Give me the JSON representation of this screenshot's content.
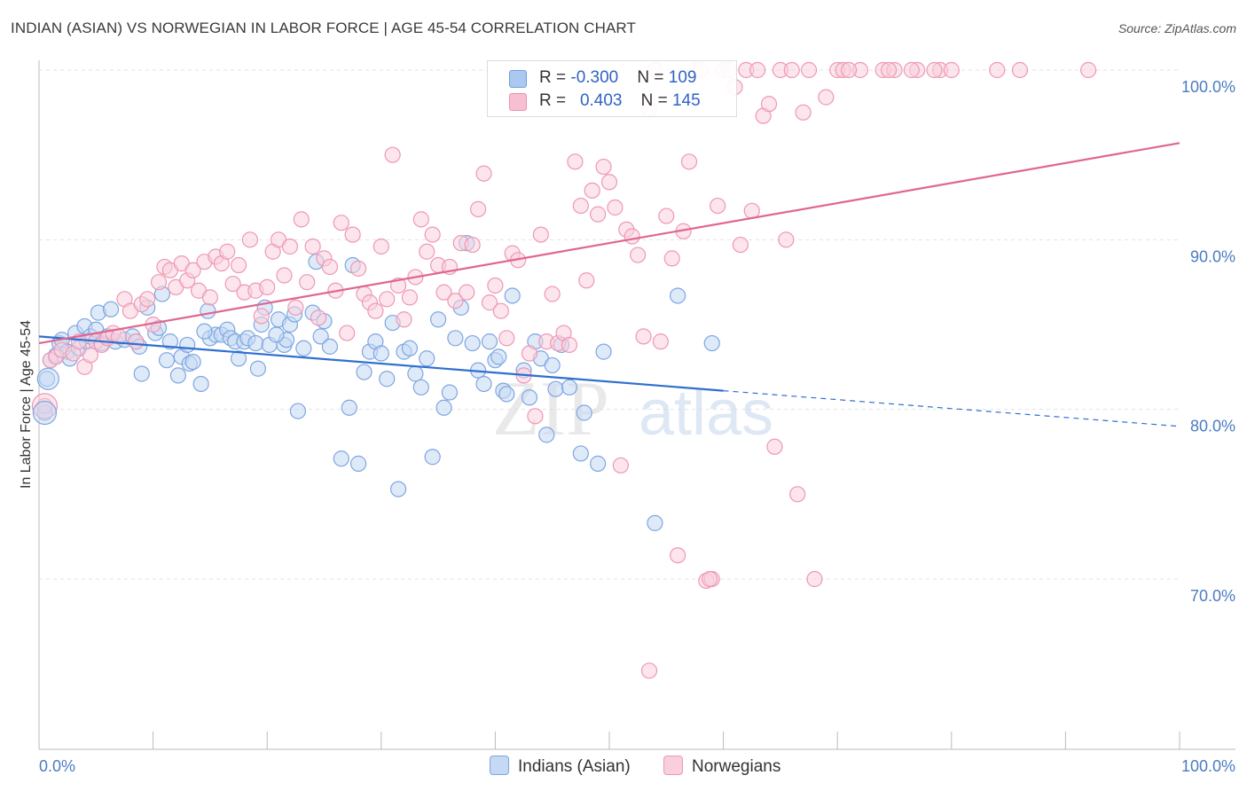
{
  "title": "INDIAN (ASIAN) VS NORWEGIAN IN LABOR FORCE | AGE 45-54 CORRELATION CHART",
  "source": "Source: ZipAtlas.com",
  "watermark": {
    "zip": "ZIP",
    "atlas": "atlas"
  },
  "legend": {
    "rows": [
      {
        "r_label": "R = ",
        "r_value": "-0.300",
        "n_label": "N = ",
        "n_value": "109",
        "color": "#aac8f0",
        "border": "#6f9fe0"
      },
      {
        "r_label": "R = ",
        "r_value": "0.403",
        "n_label": "N = ",
        "n_value": "145",
        "color": "#f7c0d2",
        "border": "#ec8fae"
      }
    ]
  },
  "bottom_legend": [
    {
      "label": "Indians (Asian)",
      "color": "#c5d8f4",
      "border": "#7ea6e0"
    },
    {
      "label": "Norwegians",
      "color": "#f9cfdc",
      "border": "#ee98b4"
    }
  ],
  "chart_data": {
    "type": "scatter",
    "title": "INDIAN (ASIAN) VS NORWEGIAN IN LABOR FORCE | AGE 45-54 CORRELATION CHART",
    "xlabel": "",
    "ylabel": "In Labor Force | Age 45-54",
    "xlim": [
      0,
      100
    ],
    "ylim": [
      60,
      100.5
    ],
    "x_tick_labels": [
      "0.0%",
      "100.0%"
    ],
    "y_ticks": [
      70,
      80,
      90,
      100
    ],
    "y_tick_labels": [
      "70.0%",
      "80.0%",
      "90.0%",
      "100.0%"
    ],
    "grid": true,
    "series": [
      {
        "name": "Indians (Asian)",
        "color": "#7ea6e0",
        "fill": "#c5d8f4",
        "trend": {
          "x": [
            0,
            60
          ],
          "y": [
            84.3,
            81.1
          ],
          "dashed_to": [
            100,
            79.0
          ],
          "color": "#2f6fd1"
        },
        "points": [
          [
            0.5,
            79.8
          ],
          [
            0.7,
            81.8
          ],
          [
            1.0,
            82.9
          ],
          [
            1.5,
            83.2
          ],
          [
            1.8,
            83.9
          ],
          [
            2.0,
            84.1
          ],
          [
            2.5,
            83.4
          ],
          [
            2.7,
            83.0
          ],
          [
            3.2,
            84.5
          ],
          [
            3.5,
            83.6
          ],
          [
            4.0,
            84.9
          ],
          [
            4.2,
            84.0
          ],
          [
            4.5,
            84.3
          ],
          [
            5.0,
            84.7
          ],
          [
            5.2,
            85.7
          ],
          [
            5.5,
            83.9
          ],
          [
            6.0,
            84.3
          ],
          [
            6.3,
            85.9
          ],
          [
            6.7,
            84.0
          ],
          [
            7.5,
            84.1
          ],
          [
            8.2,
            84.3
          ],
          [
            8.5,
            84.0
          ],
          [
            8.8,
            83.7
          ],
          [
            9.0,
            82.1
          ],
          [
            9.5,
            86.0
          ],
          [
            10.2,
            84.5
          ],
          [
            10.5,
            84.8
          ],
          [
            10.8,
            86.8
          ],
          [
            11.2,
            82.9
          ],
          [
            11.5,
            84.0
          ],
          [
            12.2,
            82.0
          ],
          [
            12.5,
            83.1
          ],
          [
            13.0,
            83.8
          ],
          [
            13.2,
            82.7
          ],
          [
            13.5,
            82.8
          ],
          [
            14.2,
            81.5
          ],
          [
            14.8,
            85.8
          ],
          [
            15.0,
            84.2
          ],
          [
            15.5,
            84.4
          ],
          [
            16.0,
            84.4
          ],
          [
            16.5,
            84.7
          ],
          [
            16.8,
            84.2
          ],
          [
            17.2,
            84.0
          ],
          [
            17.5,
            83.0
          ],
          [
            18.0,
            84.0
          ],
          [
            18.3,
            84.2
          ],
          [
            19.0,
            83.9
          ],
          [
            19.2,
            82.4
          ],
          [
            19.5,
            85.0
          ],
          [
            19.8,
            86.0
          ],
          [
            20.2,
            83.8
          ],
          [
            21.0,
            85.3
          ],
          [
            21.5,
            83.8
          ],
          [
            21.7,
            84.1
          ],
          [
            22.0,
            85.0
          ],
          [
            22.7,
            79.9
          ],
          [
            23.2,
            83.6
          ],
          [
            24.0,
            85.7
          ],
          [
            24.3,
            88.7
          ],
          [
            24.7,
            84.3
          ],
          [
            25.0,
            85.2
          ],
          [
            25.5,
            83.7
          ],
          [
            26.5,
            77.1
          ],
          [
            27.2,
            80.1
          ],
          [
            27.5,
            88.5
          ],
          [
            28.0,
            76.8
          ],
          [
            28.5,
            82.2
          ],
          [
            29.0,
            83.4
          ],
          [
            29.5,
            84.0
          ],
          [
            30.0,
            83.3
          ],
          [
            30.5,
            81.8
          ],
          [
            31.0,
            85.1
          ],
          [
            31.5,
            75.3
          ],
          [
            32.0,
            83.4
          ],
          [
            32.5,
            83.6
          ],
          [
            33.0,
            82.1
          ],
          [
            33.5,
            81.3
          ],
          [
            34.0,
            83.0
          ],
          [
            34.5,
            77.2
          ],
          [
            35.0,
            85.3
          ],
          [
            35.5,
            80.1
          ],
          [
            36.0,
            81.0
          ],
          [
            36.5,
            84.2
          ],
          [
            37.0,
            86.0
          ],
          [
            38.0,
            83.9
          ],
          [
            38.5,
            82.3
          ],
          [
            39.0,
            81.5
          ],
          [
            39.5,
            84.0
          ],
          [
            40.0,
            82.9
          ],
          [
            40.3,
            83.1
          ],
          [
            40.7,
            81.1
          ],
          [
            41.0,
            80.9
          ],
          [
            41.5,
            86.7
          ],
          [
            42.5,
            82.3
          ],
          [
            43.0,
            80.7
          ],
          [
            43.5,
            84.0
          ],
          [
            44.0,
            83.0
          ],
          [
            44.5,
            78.5
          ],
          [
            45.0,
            82.6
          ],
          [
            45.3,
            81.2
          ],
          [
            45.8,
            83.8
          ],
          [
            46.5,
            81.3
          ],
          [
            47.5,
            77.4
          ],
          [
            47.8,
            79.8
          ],
          [
            49.0,
            76.8
          ],
          [
            49.5,
            83.4
          ],
          [
            54.0,
            73.3
          ],
          [
            56.0,
            86.7
          ],
          [
            59.0,
            83.9
          ],
          [
            14.5,
            84.6
          ],
          [
            20.8,
            84.4
          ],
          [
            37.5,
            89.8
          ],
          [
            22.4,
            85.6
          ]
        ]
      },
      {
        "name": "Norwegians",
        "color": "#ee98b4",
        "fill": "#f9cfdc",
        "trend": {
          "x": [
            0,
            100
          ],
          "y": [
            83.9,
            95.7
          ],
          "color": "#e06690"
        },
        "points": [
          [
            0.5,
            80.2
          ],
          [
            1.0,
            82.9
          ],
          [
            1.5,
            83.1
          ],
          [
            2.0,
            83.5
          ],
          [
            3.0,
            83.3
          ],
          [
            3.5,
            84.0
          ],
          [
            4.0,
            82.5
          ],
          [
            4.5,
            83.2
          ],
          [
            5.0,
            84.0
          ],
          [
            5.5,
            83.8
          ],
          [
            6.0,
            84.2
          ],
          [
            6.5,
            84.5
          ],
          [
            7.0,
            84.3
          ],
          [
            7.5,
            86.5
          ],
          [
            8.0,
            85.8
          ],
          [
            8.5,
            84.0
          ],
          [
            9.0,
            86.2
          ],
          [
            9.5,
            86.5
          ],
          [
            10.0,
            85.0
          ],
          [
            10.5,
            87.5
          ],
          [
            11.0,
            88.4
          ],
          [
            11.5,
            88.2
          ],
          [
            12.0,
            87.2
          ],
          [
            12.5,
            88.6
          ],
          [
            13.0,
            87.6
          ],
          [
            13.5,
            88.2
          ],
          [
            14.0,
            87.0
          ],
          [
            14.5,
            88.7
          ],
          [
            15.0,
            86.6
          ],
          [
            15.5,
            89.0
          ],
          [
            16.0,
            88.6
          ],
          [
            16.5,
            89.3
          ],
          [
            17.0,
            87.4
          ],
          [
            17.5,
            88.5
          ],
          [
            18.0,
            86.9
          ],
          [
            18.5,
            90.0
          ],
          [
            19.0,
            87.0
          ],
          [
            19.5,
            85.5
          ],
          [
            20.0,
            87.2
          ],
          [
            20.5,
            89.3
          ],
          [
            21.0,
            90.0
          ],
          [
            21.5,
            87.9
          ],
          [
            22.0,
            89.6
          ],
          [
            22.5,
            86.0
          ],
          [
            23.0,
            91.2
          ],
          [
            23.5,
            87.5
          ],
          [
            24.0,
            89.6
          ],
          [
            24.5,
            85.4
          ],
          [
            25.0,
            88.9
          ],
          [
            25.5,
            88.4
          ],
          [
            26.0,
            87.0
          ],
          [
            26.5,
            91.0
          ],
          [
            27.0,
            84.5
          ],
          [
            27.5,
            90.3
          ],
          [
            28.0,
            88.3
          ],
          [
            28.5,
            86.8
          ],
          [
            29.0,
            86.3
          ],
          [
            29.5,
            85.8
          ],
          [
            30.0,
            89.6
          ],
          [
            30.5,
            86.5
          ],
          [
            31.0,
            95.0
          ],
          [
            31.5,
            87.3
          ],
          [
            32.0,
            85.3
          ],
          [
            32.5,
            86.6
          ],
          [
            33.0,
            87.8
          ],
          [
            33.5,
            91.2
          ],
          [
            34.0,
            89.3
          ],
          [
            34.5,
            90.3
          ],
          [
            35.0,
            88.5
          ],
          [
            35.5,
            86.9
          ],
          [
            36.0,
            88.4
          ],
          [
            36.5,
            86.4
          ],
          [
            37.0,
            89.8
          ],
          [
            37.5,
            86.9
          ],
          [
            38.0,
            89.7
          ],
          [
            38.5,
            91.8
          ],
          [
            39.0,
            93.9
          ],
          [
            39.5,
            86.3
          ],
          [
            40.0,
            87.3
          ],
          [
            40.5,
            85.8
          ],
          [
            41.0,
            84.2
          ],
          [
            41.5,
            89.2
          ],
          [
            42.0,
            88.8
          ],
          [
            42.5,
            82.0
          ],
          [
            43.0,
            83.3
          ],
          [
            43.5,
            79.6
          ],
          [
            44.0,
            90.3
          ],
          [
            44.5,
            84.0
          ],
          [
            45.0,
            86.8
          ],
          [
            45.5,
            83.9
          ],
          [
            46.0,
            84.5
          ],
          [
            46.5,
            83.8
          ],
          [
            47.0,
            94.6
          ],
          [
            47.5,
            92.0
          ],
          [
            48.0,
            87.6
          ],
          [
            48.5,
            92.9
          ],
          [
            49.0,
            91.5
          ],
          [
            49.5,
            94.3
          ],
          [
            50.0,
            93.4
          ],
          [
            50.5,
            91.9
          ],
          [
            51.0,
            76.7
          ],
          [
            51.5,
            90.6
          ],
          [
            52.0,
            90.2
          ],
          [
            52.5,
            89.1
          ],
          [
            53.0,
            84.3
          ],
          [
            53.5,
            97.7
          ],
          [
            54.0,
            100.0
          ],
          [
            54.5,
            84.0
          ],
          [
            55.0,
            91.4
          ],
          [
            55.5,
            88.9
          ],
          [
            56.0,
            71.4
          ],
          [
            56.5,
            90.5
          ],
          [
            57.0,
            94.6
          ],
          [
            57.5,
            100.0
          ],
          [
            58.0,
            100.0
          ],
          [
            58.5,
            69.9
          ],
          [
            59.0,
            70.0
          ],
          [
            59.5,
            92.0
          ],
          [
            60.0,
            100.0
          ],
          [
            60.5,
            100.0
          ],
          [
            61.0,
            99.0
          ],
          [
            61.5,
            89.7
          ],
          [
            62.0,
            100.0
          ],
          [
            62.5,
            91.7
          ],
          [
            63.0,
            100.0
          ],
          [
            63.5,
            97.3
          ],
          [
            64.0,
            98.0
          ],
          [
            64.5,
            77.8
          ],
          [
            65.0,
            100.0
          ],
          [
            65.5,
            90.0
          ],
          [
            66.0,
            100.0
          ],
          [
            66.5,
            75.0
          ],
          [
            67.0,
            97.5
          ],
          [
            67.5,
            100.0
          ],
          [
            68.0,
            70.0
          ],
          [
            70.0,
            100.0
          ],
          [
            72.0,
            100.0
          ],
          [
            74.0,
            100.0
          ],
          [
            75.0,
            100.0
          ],
          [
            77.0,
            100.0
          ],
          [
            79.0,
            100.0
          ],
          [
            80.0,
            100.0
          ],
          [
            84.0,
            100.0
          ],
          [
            86.0,
            100.0
          ],
          [
            92.0,
            100.0
          ],
          [
            53.5,
            64.6
          ],
          [
            58.8,
            70.0
          ],
          [
            69.0,
            98.4
          ],
          [
            70.5,
            100.0
          ],
          [
            71.0,
            100.0
          ],
          [
            74.5,
            100.0
          ],
          [
            76.5,
            100.0
          ],
          [
            78.5,
            100.0
          ]
        ]
      }
    ]
  }
}
